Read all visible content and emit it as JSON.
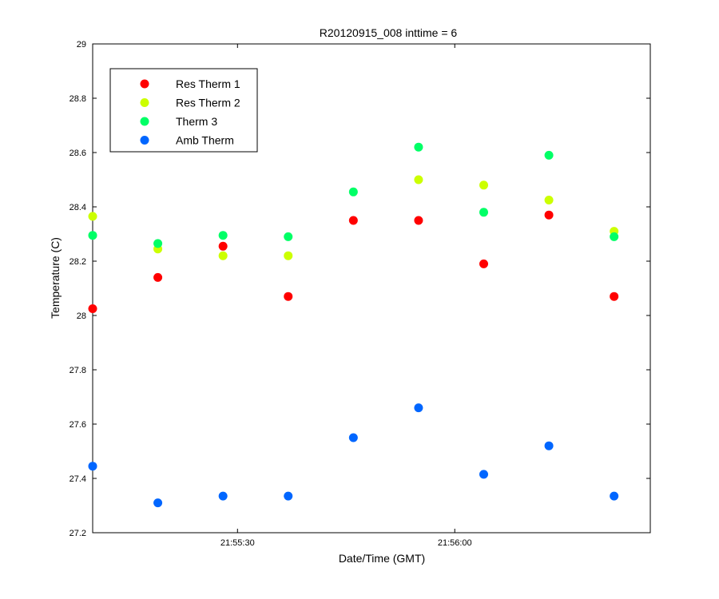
{
  "chart_data": {
    "type": "scatter",
    "title": "R20120915_008 inttime = 6",
    "xlabel": "Date/Time (GMT)",
    "ylabel": "Temperature (C)",
    "x_type": "time",
    "x": [
      "21:55:10",
      "21:55:19",
      "21:55:28",
      "21:55:37",
      "21:55:46",
      "21:55:55",
      "21:56:04",
      "21:56:13",
      "21:56:22"
    ],
    "xlim": [
      "21:55:10",
      "21:56:27"
    ],
    "xticks": [
      "21:55:30",
      "21:56:00"
    ],
    "ylim": [
      27.2,
      29
    ],
    "yticks": [
      "27.2",
      "27.4",
      "27.6",
      "27.8",
      "28",
      "28.2",
      "28.4",
      "28.6",
      "28.8",
      "29"
    ],
    "legend_position": "top-left",
    "grid": false,
    "series": [
      {
        "name": "Res Therm 1",
        "color": "#ff0000",
        "values": [
          28.025,
          28.14,
          28.255,
          28.07,
          28.35,
          28.35,
          28.19,
          28.37,
          28.07
        ]
      },
      {
        "name": "Res Therm 2",
        "color": "#ccff00",
        "values": [
          28.365,
          28.245,
          28.22,
          28.22,
          null,
          28.5,
          28.48,
          28.425,
          28.31
        ]
      },
      {
        "name": "Therm 3",
        "color": "#00ff66",
        "values": [
          28.295,
          28.265,
          28.295,
          28.29,
          28.455,
          28.62,
          28.38,
          28.59,
          28.29
        ]
      },
      {
        "name": "Amb Therm",
        "color": "#0066ff",
        "values": [
          27.445,
          27.31,
          27.335,
          27.335,
          27.55,
          27.66,
          27.415,
          27.52,
          27.335
        ]
      }
    ]
  }
}
